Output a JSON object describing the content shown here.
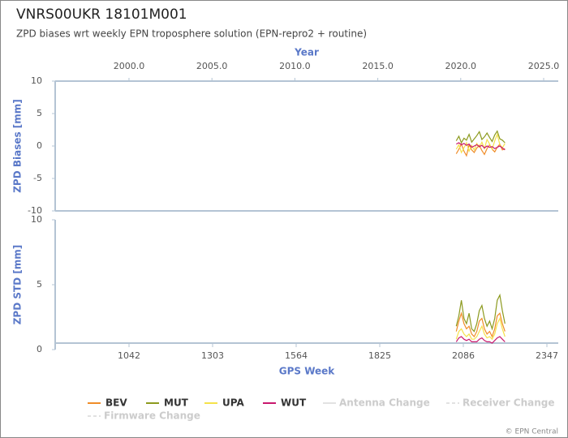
{
  "title": "VNRS00UKR 18101M001",
  "subtitle": "ZPD biases wrt weekly EPN troposphere solution (EPN-repro2 + routine)",
  "footer": "© EPN Central",
  "chart_data": [
    {
      "type": "line",
      "ylabel": "ZPD Biases [mm]",
      "ylim": [
        -10,
        10
      ],
      "yticks": [
        -10,
        -5,
        0,
        5,
        10
      ],
      "xlim": [
        811.4,
        2382.5
      ],
      "x2label": "Year",
      "x2lim": [
        1995.55,
        2025.88
      ],
      "x2ticks": [
        {
          "value": 2000,
          "label": "2000.0"
        },
        {
          "value": 2005,
          "label": "2005.0"
        },
        {
          "value": 2010,
          "label": "2010.0"
        },
        {
          "value": 2015,
          "label": "2015.0"
        },
        {
          "value": 2020,
          "label": "2020.0"
        },
        {
          "value": 2025,
          "label": "2025.0"
        }
      ],
      "x": [
        2064,
        2072,
        2080,
        2088,
        2096,
        2104,
        2112,
        2120,
        2128,
        2136,
        2144,
        2152,
        2160,
        2168,
        2176,
        2184,
        2192,
        2200,
        2208,
        2216
      ],
      "series": [
        {
          "name": "BEV",
          "color": "#f08c28",
          "values": [
            -1.2,
            -0.5,
            0.3,
            -0.8,
            -1.5,
            0.2,
            -0.6,
            -1.0,
            -0.3,
            0.1,
            -0.7,
            -1.3,
            -0.4,
            0.2,
            -0.5,
            -0.9,
            -0.2,
            0.3,
            -0.6,
            -0.4
          ]
        },
        {
          "name": "MUT",
          "color": "#8c9a1e",
          "values": [
            0.8,
            1.5,
            0.5,
            1.2,
            0.9,
            1.8,
            0.6,
            1.1,
            1.6,
            2.2,
            1.0,
            1.4,
            2.0,
            1.3,
            0.7,
            1.7,
            2.3,
            1.1,
            0.9,
            0.5
          ]
        },
        {
          "name": "UPA",
          "color": "#f5e24a",
          "values": [
            -0.5,
            0.2,
            -1.0,
            -0.3,
            0.5,
            -0.8,
            0.1,
            -0.6,
            0.4,
            -0.2,
            0.6,
            -0.4,
            1.0,
            0.3,
            -0.5,
            0.8,
            1.8,
            0.2,
            -0.3,
            0.4
          ]
        },
        {
          "name": "WUT",
          "color": "#c8186e",
          "values": [
            0.3,
            0.5,
            0.2,
            0.4,
            0.1,
            0.3,
            -0.2,
            0.0,
            0.2,
            -0.1,
            0.1,
            -0.3,
            0.0,
            -0.2,
            -0.1,
            -0.4,
            -0.2,
            0.0,
            -0.3,
            -0.6
          ]
        }
      ]
    },
    {
      "type": "line",
      "ylabel": "ZPD STD [mm]",
      "xlabel": "GPS Week",
      "ylim": [
        0,
        10
      ],
      "yticks": [
        0,
        5,
        10
      ],
      "xlim": [
        811.4,
        2382.5
      ],
      "xticks": [
        1042,
        1303,
        1564,
        1825,
        2086,
        2347
      ],
      "x": [
        2064,
        2072,
        2080,
        2088,
        2096,
        2104,
        2112,
        2120,
        2128,
        2136,
        2144,
        2152,
        2160,
        2168,
        2176,
        2184,
        2192,
        2200,
        2208,
        2216
      ],
      "series": [
        {
          "name": "BEV",
          "color": "#f08c28",
          "values": [
            1.4,
            2.2,
            2.8,
            2.0,
            1.6,
            1.8,
            1.2,
            1.0,
            1.4,
            2.2,
            2.4,
            1.6,
            1.2,
            1.4,
            1.0,
            1.6,
            2.6,
            2.8,
            2.0,
            1.4
          ]
        },
        {
          "name": "MUT",
          "color": "#8c9a1e",
          "values": [
            1.8,
            2.6,
            3.8,
            2.4,
            2.0,
            2.8,
            1.6,
            1.4,
            2.0,
            3.0,
            3.4,
            2.4,
            1.8,
            2.2,
            1.6,
            2.4,
            3.8,
            4.2,
            3.0,
            2.0
          ]
        },
        {
          "name": "UPA",
          "color": "#f5e24a",
          "values": [
            0.8,
            1.4,
            1.6,
            1.2,
            1.0,
            1.2,
            0.8,
            0.8,
            1.0,
            1.4,
            1.8,
            1.2,
            0.9,
            1.0,
            0.8,
            1.2,
            2.0,
            2.4,
            1.6,
            1.0
          ]
        },
        {
          "name": "WUT",
          "color": "#c8186e",
          "values": [
            0.6,
            0.9,
            1.0,
            0.8,
            0.7,
            0.8,
            0.6,
            0.6,
            0.6,
            0.8,
            0.9,
            0.7,
            0.6,
            0.6,
            0.5,
            0.7,
            0.9,
            1.0,
            0.8,
            0.6
          ]
        }
      ],
      "events": [
        {
          "name": "Antenna Change",
          "color": "#d8d8d8"
        },
        {
          "name": "Receiver Change",
          "color": "#d8d8d8"
        },
        {
          "name": "Firmware Change",
          "color": "#d8d8d8"
        }
      ]
    }
  ]
}
